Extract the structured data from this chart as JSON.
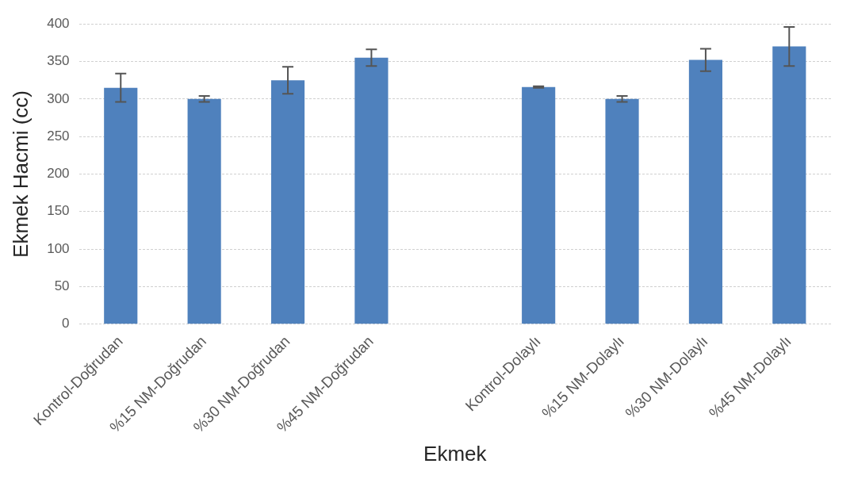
{
  "chart_data": {
    "type": "bar",
    "xlabel": "Ekmek",
    "ylabel": "Ekmek Hacmi (cc)",
    "categories": [
      "Kontrol-Doğrudan",
      "%15 NM-Doğrudan",
      "%30 NM-Doğrudan",
      "%45 NM-Doğrudan",
      null,
      "Kontrol-Dolaylı",
      "%15 NM-Dolaylı",
      "%30 NM-Dolaylı",
      "%45 NM-Dolaylı"
    ],
    "values": [
      315,
      300,
      325,
      355,
      null,
      316,
      300,
      352,
      370
    ],
    "errors": [
      19,
      4,
      18,
      11,
      null,
      1,
      4,
      15,
      26
    ],
    "color": "#4f81bd",
    "ylim": [
      0,
      400
    ],
    "yticks": [
      0,
      50,
      100,
      150,
      200,
      250,
      300,
      350,
      400
    ],
    "grid": "y",
    "legend": false
  }
}
